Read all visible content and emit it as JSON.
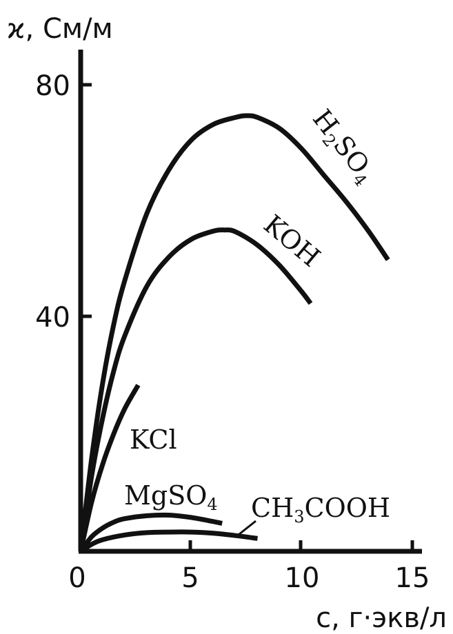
{
  "chart_data": {
    "type": "line",
    "xlabel": "c, г·экв/л",
    "ylabel": "ϰ, См/м",
    "xlim": [
      0,
      15
    ],
    "ylim": [
      0,
      85
    ],
    "xticks": [
      "0",
      "5",
      "10",
      "15"
    ],
    "yticks": [
      "40",
      "80"
    ],
    "grid": false,
    "legend": "none",
    "series": [
      {
        "name": "H2SO4",
        "label_main": "H",
        "label_sub1": "2",
        "label_mid": "SO",
        "label_sub2": "4",
        "x": [
          0,
          0.5,
          1,
          1.5,
          2,
          3,
          4,
          5,
          6,
          7,
          7.5,
          8,
          9,
          10,
          11,
          12,
          13,
          13.9
        ],
        "y": [
          0,
          16,
          29,
          39,
          46.5,
          58,
          65.5,
          70.5,
          73.2,
          74.4,
          74.7,
          74.4,
          72.5,
          69,
          64.5,
          60,
          55,
          50
        ]
      },
      {
        "name": "KOH",
        "label_main": "KOH",
        "x": [
          0,
          0.5,
          1,
          1.5,
          2,
          3,
          4,
          5,
          6,
          6.5,
          7,
          8,
          9,
          10,
          10.4
        ],
        "y": [
          0,
          13,
          23,
          31,
          37,
          45.5,
          50.5,
          53.5,
          54.9,
          55.1,
          54.8,
          52.5,
          49,
          44.5,
          42.5
        ]
      },
      {
        "name": "KCl",
        "label_main": "KCl",
        "x": [
          0,
          0.5,
          1,
          1.5,
          2,
          2.6
        ],
        "y": [
          0,
          8.5,
          15,
          20.2,
          24.5,
          28.5
        ]
      },
      {
        "name": "MgSO4",
        "label_main": "MgSO",
        "label_sub2": "4",
        "x": [
          0,
          0.5,
          1,
          1.5,
          2,
          3,
          4,
          5,
          6,
          6.4
        ],
        "y": [
          0,
          2.5,
          4,
          5,
          5.6,
          6.1,
          6.2,
          5.8,
          5.1,
          4.8
        ]
      },
      {
        "name": "CH3COOH",
        "label_main": "CH",
        "label_sub1": "3",
        "label_mid": "COOH",
        "x": [
          0,
          0.5,
          1,
          2,
          3,
          4,
          5,
          6,
          7,
          8
        ],
        "y": [
          0,
          1.2,
          2,
          2.8,
          3.2,
          3.3,
          3.3,
          3.1,
          2.7,
          2.2
        ]
      }
    ]
  }
}
